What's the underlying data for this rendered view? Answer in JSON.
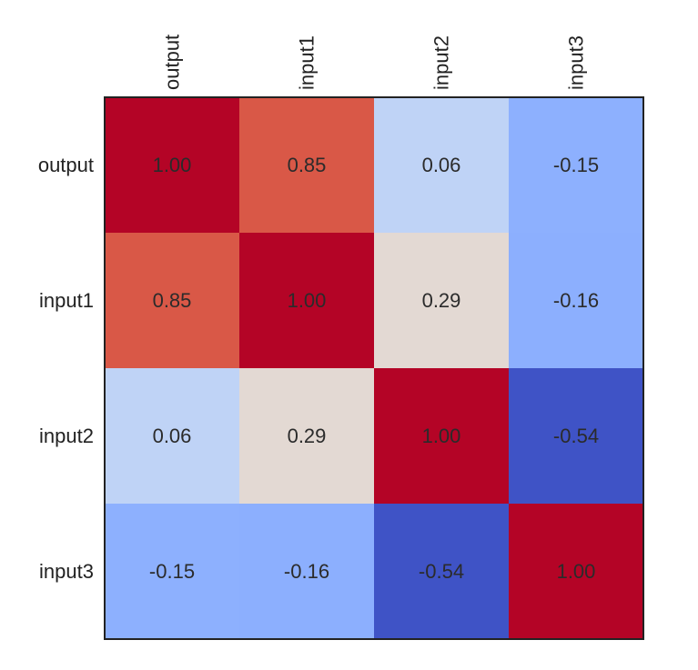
{
  "chart_data": {
    "type": "heatmap",
    "title": "",
    "xlabel": "",
    "ylabel": "",
    "colormap": "coolwarm",
    "vmin": -1,
    "vmax": 1,
    "grid": false,
    "legend": "none",
    "x_categories": [
      "output",
      "input1",
      "input2",
      "input3"
    ],
    "y_categories": [
      "output",
      "input1",
      "input2",
      "input3"
    ],
    "values": [
      [
        1.0,
        0.85,
        0.06,
        -0.15
      ],
      [
        0.85,
        1.0,
        0.29,
        -0.16
      ],
      [
        0.06,
        0.29,
        1.0,
        -0.54
      ],
      [
        -0.15,
        -0.16,
        -0.54,
        1.0
      ]
    ],
    "cell_labels": [
      [
        "1.00",
        "0.85",
        "0.06",
        "-0.15"
      ],
      [
        "0.85",
        "1.00",
        "0.29",
        "-0.16"
      ],
      [
        "0.06",
        "0.29",
        "1.00",
        "-0.54"
      ],
      [
        "-0.15",
        "-0.16",
        "-0.54",
        "1.00"
      ]
    ],
    "cell_colors": [
      [
        "#b40426",
        "#d95847",
        "#bfd3f6",
        "#8db0fe"
      ],
      [
        "#d95847",
        "#b40426",
        "#e3d9d3",
        "#8caffe"
      ],
      [
        "#bfd3f6",
        "#e3d9d3",
        "#b40426",
        "#3f53c6"
      ],
      [
        "#8db0fe",
        "#8caffe",
        "#3f53c6",
        "#b40426"
      ]
    ],
    "frame_color": "#222222",
    "text_color": "#2b2b2b"
  }
}
